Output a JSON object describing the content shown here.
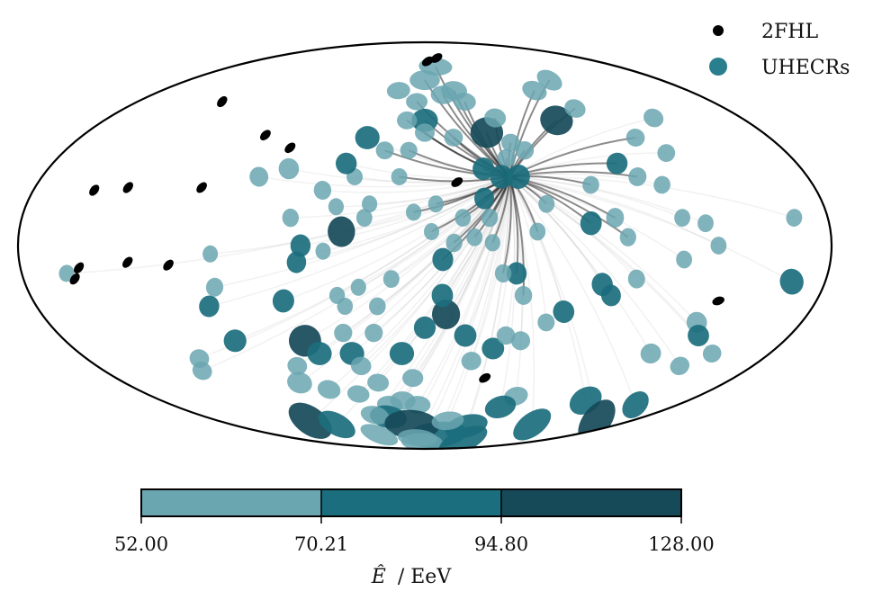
{
  "chart_data": {
    "type": "scatter",
    "projection": "mollweide",
    "title": "",
    "coordinate_units": "degrees (longitude -180..180, latitude -90..90)",
    "legend": {
      "placement": "top-right",
      "entries": [
        {
          "label": "2FHL",
          "color": "#000000"
        },
        {
          "label": "UHECRs",
          "color": "#2a7f8f"
        }
      ]
    },
    "colorbar": {
      "label": "$\\hat{E}$ / EeV",
      "label_parts": {
        "symbol": "Ê",
        "unit": "/ EeV"
      },
      "ticks": [
        "52.00",
        "70.21",
        "94.80",
        "128.00"
      ],
      "bins": [
        {
          "min": 52.0,
          "max": 70.21,
          "color": "#6aa6b0"
        },
        {
          "min": 70.21,
          "max": 94.8,
          "color": "#1b6e7d"
        },
        {
          "min": 94.8,
          "max": 128.0,
          "color": "#164a59"
        }
      ]
    },
    "focus_point": {
      "lon": 40,
      "lat": 25
    },
    "series": [
      {
        "name": "2FHL",
        "color": "#000000",
        "points": [
          {
            "lon": 13.5,
            "lat": 77
          },
          {
            "lon": 3,
            "lat": 75
          },
          {
            "lon": -127,
            "lat": 55
          },
          {
            "lon": -84,
            "lat": 41
          },
          {
            "lon": -68,
            "lat": 36
          },
          {
            "lon": -152,
            "lat": 20
          },
          {
            "lon": -103,
            "lat": 21
          },
          {
            "lon": -137,
            "lat": 21
          },
          {
            "lon": -154,
            "lat": -8
          },
          {
            "lon": -132,
            "lat": -6
          },
          {
            "lon": -114,
            "lat": -7
          },
          {
            "lon": -157,
            "lat": -12
          },
          {
            "lon": 15,
            "lat": 23
          },
          {
            "lon": 135,
            "lat": -20
          },
          {
            "lon": 35,
            "lat": -50
          }
        ]
      },
      {
        "name": "UHECRs",
        "markers": [
          {
            "lon": 0,
            "lat": 65,
            "E": 65
          },
          {
            "lon": 0,
            "lat": 47,
            "E": 78
          },
          {
            "lon": 0,
            "lat": 42,
            "E": 60
          },
          {
            "lon": 10,
            "lat": 72,
            "E": 58
          },
          {
            "lon": 12,
            "lat": 58,
            "E": 60
          },
          {
            "lon": 20,
            "lat": 60,
            "E": 62
          },
          {
            "lon": 25,
            "lat": 55,
            "E": 58
          },
          {
            "lon": 33,
            "lat": 42,
            "E": 105
          },
          {
            "lon": 40,
            "lat": 32,
            "E": 60
          },
          {
            "lon": 40,
            "lat": 48,
            "E": 62
          },
          {
            "lon": 44,
            "lat": 38,
            "E": 58
          },
          {
            "lon": 50,
            "lat": 35,
            "E": 60
          },
          {
            "lon": 28,
            "lat": 28,
            "E": 75
          },
          {
            "lon": 36,
            "lat": 25,
            "E": 80
          },
          {
            "lon": 44,
            "lat": 25,
            "E": 82
          },
          {
            "lon": 27,
            "lat": 17,
            "E": 72
          },
          {
            "lon": 29,
            "lat": 10,
            "E": 60
          },
          {
            "lon": 17,
            "lat": 10,
            "E": 58
          },
          {
            "lon": 5,
            "lat": 15,
            "E": 55
          },
          {
            "lon": -5,
            "lat": 12,
            "E": 55
          },
          {
            "lon": 3,
            "lat": 5,
            "E": 55
          },
          {
            "lon": 13,
            "lat": 1,
            "E": 60
          },
          {
            "lon": 22,
            "lat": 3,
            "E": 58
          },
          {
            "lon": 30,
            "lat": 1,
            "E": 56
          },
          {
            "lon": 8,
            "lat": -5,
            "E": 78
          },
          {
            "lon": 41,
            "lat": -10,
            "E": 75
          },
          {
            "lon": 35,
            "lat": -10,
            "E": 60
          },
          {
            "lon": 45,
            "lat": -18,
            "E": 62
          },
          {
            "lon": 65,
            "lat": -24,
            "E": 75
          },
          {
            "lon": 80,
            "lat": -14,
            "E": 78
          },
          {
            "lon": 85,
            "lat": -18,
            "E": 72
          },
          {
            "lon": 95,
            "lat": -12,
            "E": 62
          },
          {
            "lon": 74,
            "lat": 8,
            "E": 80
          },
          {
            "lon": 85,
            "lat": 10,
            "E": 65
          },
          {
            "lon": 90,
            "lat": 3,
            "E": 60
          },
          {
            "lon": 77,
            "lat": 22,
            "E": 58
          },
          {
            "lon": 93,
            "lat": 30,
            "E": 72
          },
          {
            "lon": 100,
            "lat": 25,
            "E": 62
          },
          {
            "lon": 110,
            "lat": 22,
            "E": 58
          },
          {
            "lon": 74,
            "lat": 47,
            "E": 100
          },
          {
            "lon": 75,
            "lat": 60,
            "E": 60
          },
          {
            "lon": 90,
            "lat": 52,
            "E": 58
          },
          {
            "lon": 95,
            "lat": 65,
            "E": 58
          },
          {
            "lon": 110,
            "lat": 40,
            "E": 58
          },
          {
            "lon": 120,
            "lat": 34,
            "E": 58
          },
          {
            "lon": 165,
            "lat": -13,
            "E": 88
          },
          {
            "lon": 130,
            "lat": -28,
            "E": 70
          },
          {
            "lon": 135,
            "lat": -33,
            "E": 72
          },
          {
            "lon": 118,
            "lat": -40,
            "E": 65
          },
          {
            "lon": 140,
            "lat": -45,
            "E": 58
          },
          {
            "lon": 110,
            "lat": -60,
            "E": 85
          },
          {
            "lon": 100,
            "lat": -72,
            "E": 78
          },
          {
            "lon": 60,
            "lat": -58,
            "E": 60
          },
          {
            "lon": 55,
            "lat": -63,
            "E": 72
          },
          {
            "lon": 40,
            "lat": -73,
            "E": 75
          },
          {
            "lon": 15,
            "lat": -78,
            "E": 88
          },
          {
            "lon": 25,
            "lat": -43,
            "E": 60
          },
          {
            "lon": 35,
            "lat": -38,
            "E": 72
          },
          {
            "lon": 48,
            "lat": -35,
            "E": 62
          },
          {
            "lon": 58,
            "lat": -28,
            "E": 58
          },
          {
            "lon": 40,
            "lat": -33,
            "E": 60
          },
          {
            "lon": 20,
            "lat": -33,
            "E": 75
          },
          {
            "lon": 10,
            "lat": -25,
            "E": 102
          },
          {
            "lon": 8,
            "lat": -18,
            "E": 78
          },
          {
            "lon": 0,
            "lat": -30,
            "E": 75
          },
          {
            "lon": -12,
            "lat": -40,
            "E": 78
          },
          {
            "lon": -7,
            "lat": -50,
            "E": 58
          },
          {
            "lon": -5,
            "lat": -62,
            "E": 58
          },
          {
            "lon": -25,
            "lat": -32,
            "E": 60
          },
          {
            "lon": -22,
            "lat": -22,
            "E": 58
          },
          {
            "lon": -15,
            "lat": -12,
            "E": 58
          },
          {
            "lon": -30,
            "lat": -15,
            "E": 55
          },
          {
            "lon": -37,
            "lat": -22,
            "E": 55
          },
          {
            "lon": -27,
            "lat": 10,
            "E": 58
          },
          {
            "lon": -25,
            "lat": 15,
            "E": 55
          },
          {
            "lon": -12,
            "lat": 25,
            "E": 55
          },
          {
            "lon": -20,
            "lat": 35,
            "E": 58
          },
          {
            "lon": -8,
            "lat": 35,
            "E": 55
          },
          {
            "lon": -10,
            "lat": 47,
            "E": 58
          },
          {
            "lon": -5,
            "lat": 55,
            "E": 55
          },
          {
            "lon": -18,
            "lat": 60,
            "E": 55
          },
          {
            "lon": -30,
            "lat": 40,
            "E": 78
          },
          {
            "lon": -33,
            "lat": 25,
            "E": 55
          },
          {
            "lon": -38,
            "lat": 30,
            "E": 72
          },
          {
            "lon": -40,
            "lat": 14,
            "E": 55
          },
          {
            "lon": -37,
            "lat": 5,
            "E": 105
          },
          {
            "lon": -55,
            "lat": 0,
            "E": 75
          },
          {
            "lon": -57,
            "lat": -6,
            "E": 72
          },
          {
            "lon": -40,
            "lat": -18,
            "E": 55
          },
          {
            "lon": -65,
            "lat": -20,
            "E": 78
          },
          {
            "lon": -60,
            "lat": -35,
            "E": 110
          },
          {
            "lon": -55,
            "lat": -40,
            "E": 78
          },
          {
            "lon": -40,
            "lat": -32,
            "E": 60
          },
          {
            "lon": -38,
            "lat": -40,
            "E": 78
          },
          {
            "lon": -35,
            "lat": -45,
            "E": 60
          },
          {
            "lon": -70,
            "lat": -45,
            "E": 58
          },
          {
            "lon": -95,
            "lat": -35,
            "E": 75
          },
          {
            "lon": -120,
            "lat": -42,
            "E": 60
          },
          {
            "lon": -125,
            "lat": -47,
            "E": 58
          },
          {
            "lon": -75,
            "lat": -52,
            "E": 70
          },
          {
            "lon": -60,
            "lat": -55,
            "E": 60
          },
          {
            "lon": -43,
            "lat": -57,
            "E": 55
          },
          {
            "lon": -28,
            "lat": -52,
            "E": 58
          },
          {
            "lon": -25,
            "lat": -62,
            "E": 58
          },
          {
            "lon": -15,
            "lat": -60,
            "E": 60
          },
          {
            "lon": -30,
            "lat": -68,
            "E": 75
          },
          {
            "lon": -40,
            "lat": -67,
            "E": 58
          },
          {
            "lon": -12,
            "lat": -72,
            "E": 100
          },
          {
            "lon": 20,
            "lat": -70,
            "E": 60
          },
          {
            "lon": -100,
            "lat": -70,
            "E": 95
          },
          {
            "lon": -82,
            "lat": -72,
            "E": 72
          },
          {
            "lon": -10,
            "lat": -80,
            "E": 55
          },
          {
            "lon": -55,
            "lat": -78,
            "E": 55
          },
          {
            "lon": -5,
            "lat": -83,
            "E": 58
          },
          {
            "lon": 60,
            "lat": -82,
            "E": 75
          },
          {
            "lon": 150,
            "lat": -70,
            "E": 95
          },
          {
            "lon": 150,
            "lat": -62,
            "E": 72
          },
          {
            "lon": 150,
            "lat": -40,
            "E": 58
          },
          {
            "lon": -100,
            "lat": -22,
            "E": 72
          },
          {
            "lon": -95,
            "lat": -15,
            "E": 62
          },
          {
            "lon": -60,
            "lat": 10,
            "E": 60
          },
          {
            "lon": -47,
            "lat": 20,
            "E": 62
          },
          {
            "lon": -65,
            "lat": 28,
            "E": 70
          },
          {
            "lon": -78,
            "lat": 25,
            "E": 65
          },
          {
            "lon": -160,
            "lat": -10,
            "E": 55
          },
          {
            "lon": -95,
            "lat": -3,
            "E": 55
          },
          {
            "lon": -45,
            "lat": -2,
            "E": 55
          },
          {
            "lon": 115,
            "lat": 10,
            "E": 58
          },
          {
            "lon": 125,
            "lat": 8,
            "E": 58
          },
          {
            "lon": 130,
            "lat": 0,
            "E": 58
          },
          {
            "lon": 115,
            "lat": -5,
            "E": 58
          },
          {
            "lon": 130,
            "lat": 48,
            "E": 58
          },
          {
            "lon": 165,
            "lat": 10,
            "E": 58
          },
          {
            "lon": 15,
            "lat": 40,
            "E": 58
          },
          {
            "lon": 50,
            "lat": 5,
            "E": 58
          },
          {
            "lon": 55,
            "lat": 15,
            "E": 58
          }
        ]
      }
    ]
  }
}
